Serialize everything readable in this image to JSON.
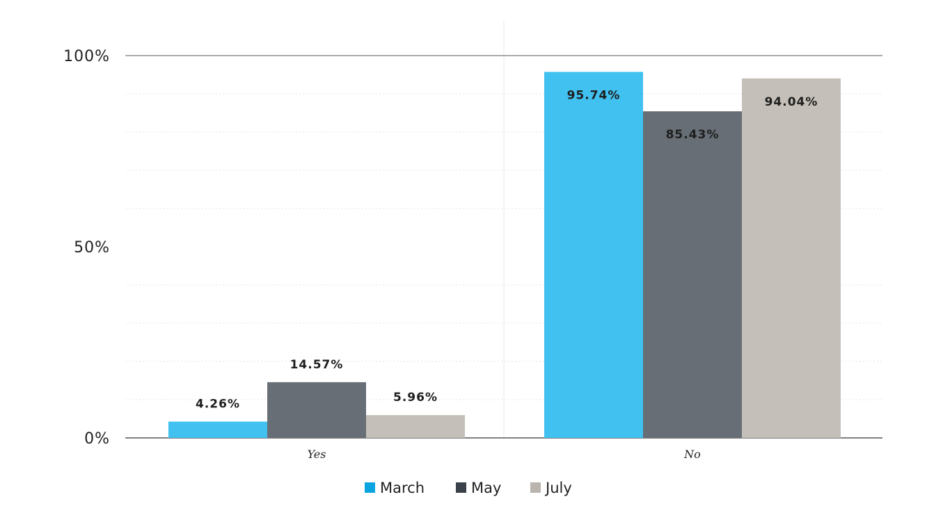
{
  "chart_data": {
    "type": "bar",
    "categories": [
      "Yes",
      "No"
    ],
    "series": [
      {
        "name": "March",
        "values": [
          4.26,
          95.74
        ],
        "labels": [
          "4.26%",
          "95.74%"
        ],
        "color": "#40C1F0",
        "legend_color": "#0AA4E0"
      },
      {
        "name": "May",
        "values": [
          14.57,
          85.43
        ],
        "labels": [
          "14.57%",
          "85.43%"
        ],
        "color": "#676E75",
        "legend_color": "#3A4148"
      },
      {
        "name": "July",
        "values": [
          5.96,
          94.04
        ],
        "labels": [
          "5.96%",
          "94.04%"
        ],
        "color": "#C4C0B9",
        "legend_color": "#B9B4AD"
      }
    ],
    "yticks": [
      {
        "value": 0,
        "label": "0%"
      },
      {
        "value": 50,
        "label": "50%"
      },
      {
        "value": 100,
        "label": "100%"
      }
    ],
    "ylim": [
      0,
      100
    ],
    "minor_grid_step": 10,
    "grid": true,
    "legend_position": "bottom-center",
    "axis_color": "#555555",
    "grid_color": "#E6E6E6"
  }
}
